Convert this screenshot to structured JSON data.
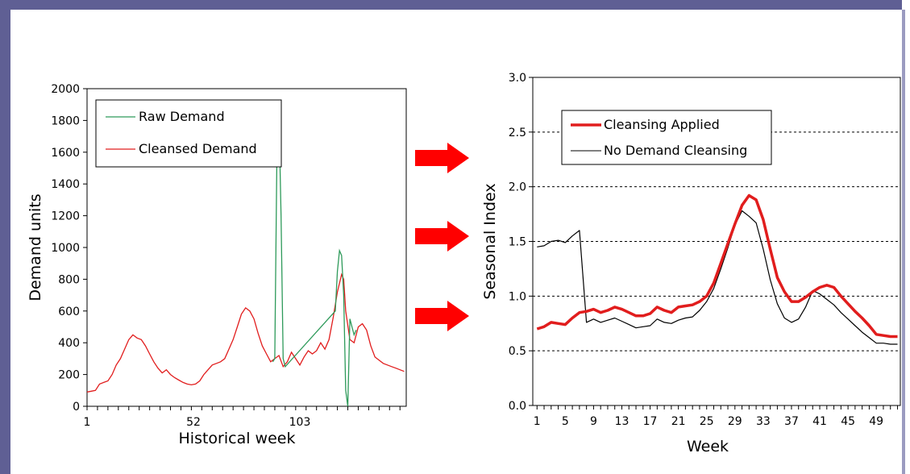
{
  "chart_data": [
    {
      "type": "line",
      "xlabel": "Historical week",
      "ylabel": "Demand units",
      "xlim": [
        1,
        154
      ],
      "ylim": [
        0,
        2000
      ],
      "yticks": [
        "0",
        "200",
        "400",
        "600",
        "800",
        "1000",
        "1200",
        "1400",
        "1600",
        "1800",
        "2000"
      ],
      "xtick_labels": [
        "1",
        "52",
        "103"
      ],
      "legend": [
        "Raw Demand",
        "Cleansed Demand"
      ],
      "legend_position": "top-left",
      "series": [
        {
          "name": "Raw Demand",
          "color": "#2e9a5a",
          "points": [
            [
              90,
              280
            ],
            [
              91,
              300
            ],
            [
              92,
              1560
            ],
            [
              93,
              1830
            ],
            [
              94,
              1200
            ],
            [
              95,
              300
            ],
            [
              96,
              250
            ],
            [
              120,
              600
            ],
            [
              121,
              850
            ],
            [
              122,
              980
            ],
            [
              123,
              950
            ],
            [
              124,
              700
            ],
            [
              125,
              100
            ],
            [
              126,
              0
            ],
            [
              127,
              550
            ],
            [
              128,
              500
            ],
            [
              129,
              450
            ],
            [
              130,
              480
            ]
          ]
        },
        {
          "name": "Cleansed Demand",
          "color": "#e11d1d",
          "points": [
            [
              1,
              90
            ],
            [
              3,
              95
            ],
            [
              5,
              100
            ],
            [
              7,
              140
            ],
            [
              9,
              150
            ],
            [
              11,
              160
            ],
            [
              13,
              200
            ],
            [
              15,
              260
            ],
            [
              17,
              300
            ],
            [
              19,
              360
            ],
            [
              21,
              420
            ],
            [
              23,
              450
            ],
            [
              25,
              430
            ],
            [
              27,
              420
            ],
            [
              29,
              380
            ],
            [
              31,
              330
            ],
            [
              33,
              280
            ],
            [
              35,
              240
            ],
            [
              37,
              210
            ],
            [
              39,
              230
            ],
            [
              41,
              200
            ],
            [
              43,
              180
            ],
            [
              45,
              165
            ],
            [
              47,
              150
            ],
            [
              49,
              140
            ],
            [
              51,
              135
            ],
            [
              53,
              140
            ],
            [
              55,
              160
            ],
            [
              57,
              200
            ],
            [
              59,
              230
            ],
            [
              61,
              260
            ],
            [
              63,
              270
            ],
            [
              65,
              280
            ],
            [
              67,
              300
            ],
            [
              69,
              360
            ],
            [
              71,
              420
            ],
            [
              73,
              500
            ],
            [
              75,
              580
            ],
            [
              77,
              620
            ],
            [
              79,
              600
            ],
            [
              81,
              550
            ],
            [
              83,
              460
            ],
            [
              85,
              380
            ],
            [
              87,
              330
            ],
            [
              89,
              280
            ],
            [
              91,
              300
            ],
            [
              93,
              320
            ],
            [
              95,
              250
            ],
            [
              97,
              280
            ],
            [
              99,
              340
            ],
            [
              101,
              300
            ],
            [
              103,
              260
            ],
            [
              105,
              310
            ],
            [
              107,
              350
            ],
            [
              109,
              330
            ],
            [
              111,
              350
            ],
            [
              113,
              400
            ],
            [
              115,
              360
            ],
            [
              117,
              420
            ],
            [
              119,
              560
            ],
            [
              121,
              720
            ],
            [
              123,
              830
            ],
            [
              124,
              800
            ],
            [
              125,
              600
            ],
            [
              127,
              420
            ],
            [
              129,
              400
            ],
            [
              131,
              500
            ],
            [
              133,
              520
            ],
            [
              135,
              480
            ],
            [
              137,
              380
            ],
            [
              139,
              310
            ],
            [
              141,
              290
            ],
            [
              143,
              270
            ],
            [
              145,
              260
            ],
            [
              147,
              250
            ],
            [
              149,
              240
            ],
            [
              151,
              230
            ],
            [
              153,
              220
            ]
          ]
        }
      ]
    },
    {
      "type": "line",
      "xlabel": "Week",
      "ylabel": "Seasonal Index",
      "xlim": [
        1,
        52
      ],
      "ylim": [
        0,
        3
      ],
      "yticks": [
        "0.0",
        "0.5",
        "1.0",
        "1.5",
        "2.0",
        "2.5",
        "3.0"
      ],
      "xtick_labels": [
        "1",
        "5",
        "9",
        "13",
        "17",
        "21",
        "25",
        "29",
        "33",
        "37",
        "41",
        "45",
        "49"
      ],
      "grid": "horizontal dashed",
      "legend": [
        "Cleansing Applied",
        "No Demand Cleansing"
      ],
      "legend_position": "top",
      "series": [
        {
          "name": "Cleansing Applied",
          "color": "#e11d1d",
          "values": [
            0.7,
            0.72,
            0.76,
            0.75,
            0.74,
            0.8,
            0.85,
            0.86,
            0.88,
            0.85,
            0.87,
            0.9,
            0.88,
            0.85,
            0.82,
            0.82,
            0.84,
            0.9,
            0.87,
            0.85,
            0.9,
            0.91,
            0.92,
            0.95,
            1.0,
            1.12,
            1.3,
            1.48,
            1.66,
            1.83,
            1.92,
            1.88,
            1.7,
            1.43,
            1.17,
            1.04,
            0.95,
            0.95,
            0.99,
            1.04,
            1.08,
            1.1,
            1.08,
            1.0,
            0.93,
            0.86,
            0.8,
            0.73,
            0.65,
            0.64,
            0.63,
            0.63
          ]
        },
        {
          "name": "No Demand Cleansing",
          "color": "#000000",
          "values": [
            1.45,
            1.46,
            1.5,
            1.51,
            1.49,
            1.55,
            1.6,
            0.76,
            0.79,
            0.76,
            0.78,
            0.8,
            0.77,
            0.74,
            0.71,
            0.72,
            0.73,
            0.79,
            0.76,
            0.75,
            0.78,
            0.8,
            0.81,
            0.87,
            0.95,
            1.07,
            1.25,
            1.44,
            1.65,
            1.78,
            1.73,
            1.67,
            1.43,
            1.15,
            0.93,
            0.8,
            0.76,
            0.79,
            0.9,
            1.05,
            1.02,
            0.97,
            0.92,
            0.85,
            0.79,
            0.73,
            0.67,
            0.62,
            0.57,
            0.57,
            0.56,
            0.56
          ]
        }
      ]
    }
  ]
}
